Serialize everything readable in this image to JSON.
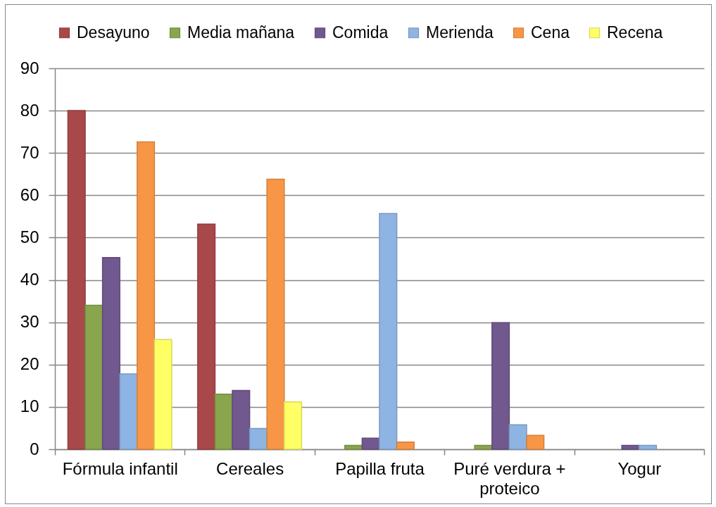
{
  "chart_data": {
    "type": "bar",
    "categories": [
      "Fórmula infantil",
      "Cereales",
      "Papilla fruta",
      "Puré verdura + proteico",
      "Yogur"
    ],
    "series": [
      {
        "name": "Desayuno",
        "color": "#a9484a",
        "values": [
          80,
          53.2,
          null,
          null,
          null
        ]
      },
      {
        "name": "Media mañana",
        "color": "#89a54e",
        "values": [
          34,
          13,
          0.9,
          0.9,
          null
        ]
      },
      {
        "name": "Comida",
        "color": "#71588f",
        "values": [
          45.3,
          13.9,
          2.6,
          29.9,
          0.9
        ]
      },
      {
        "name": "Merienda",
        "color": "#8eb4e3",
        "values": [
          17.8,
          4.9,
          55.7,
          5.8,
          0.9
        ]
      },
      {
        "name": "Cena",
        "color": "#f79646",
        "values": [
          72.6,
          63.8,
          1.7,
          3.3,
          null
        ]
      },
      {
        "name": "Recena",
        "color": "#ffff66",
        "values": [
          25.9,
          11.2,
          null,
          null,
          null
        ]
      }
    ],
    "ylim": [
      0,
      90
    ],
    "yticks": [
      0,
      10,
      20,
      30,
      40,
      50,
      60,
      70,
      80,
      90
    ],
    "grid": "y",
    "legend": "top"
  }
}
